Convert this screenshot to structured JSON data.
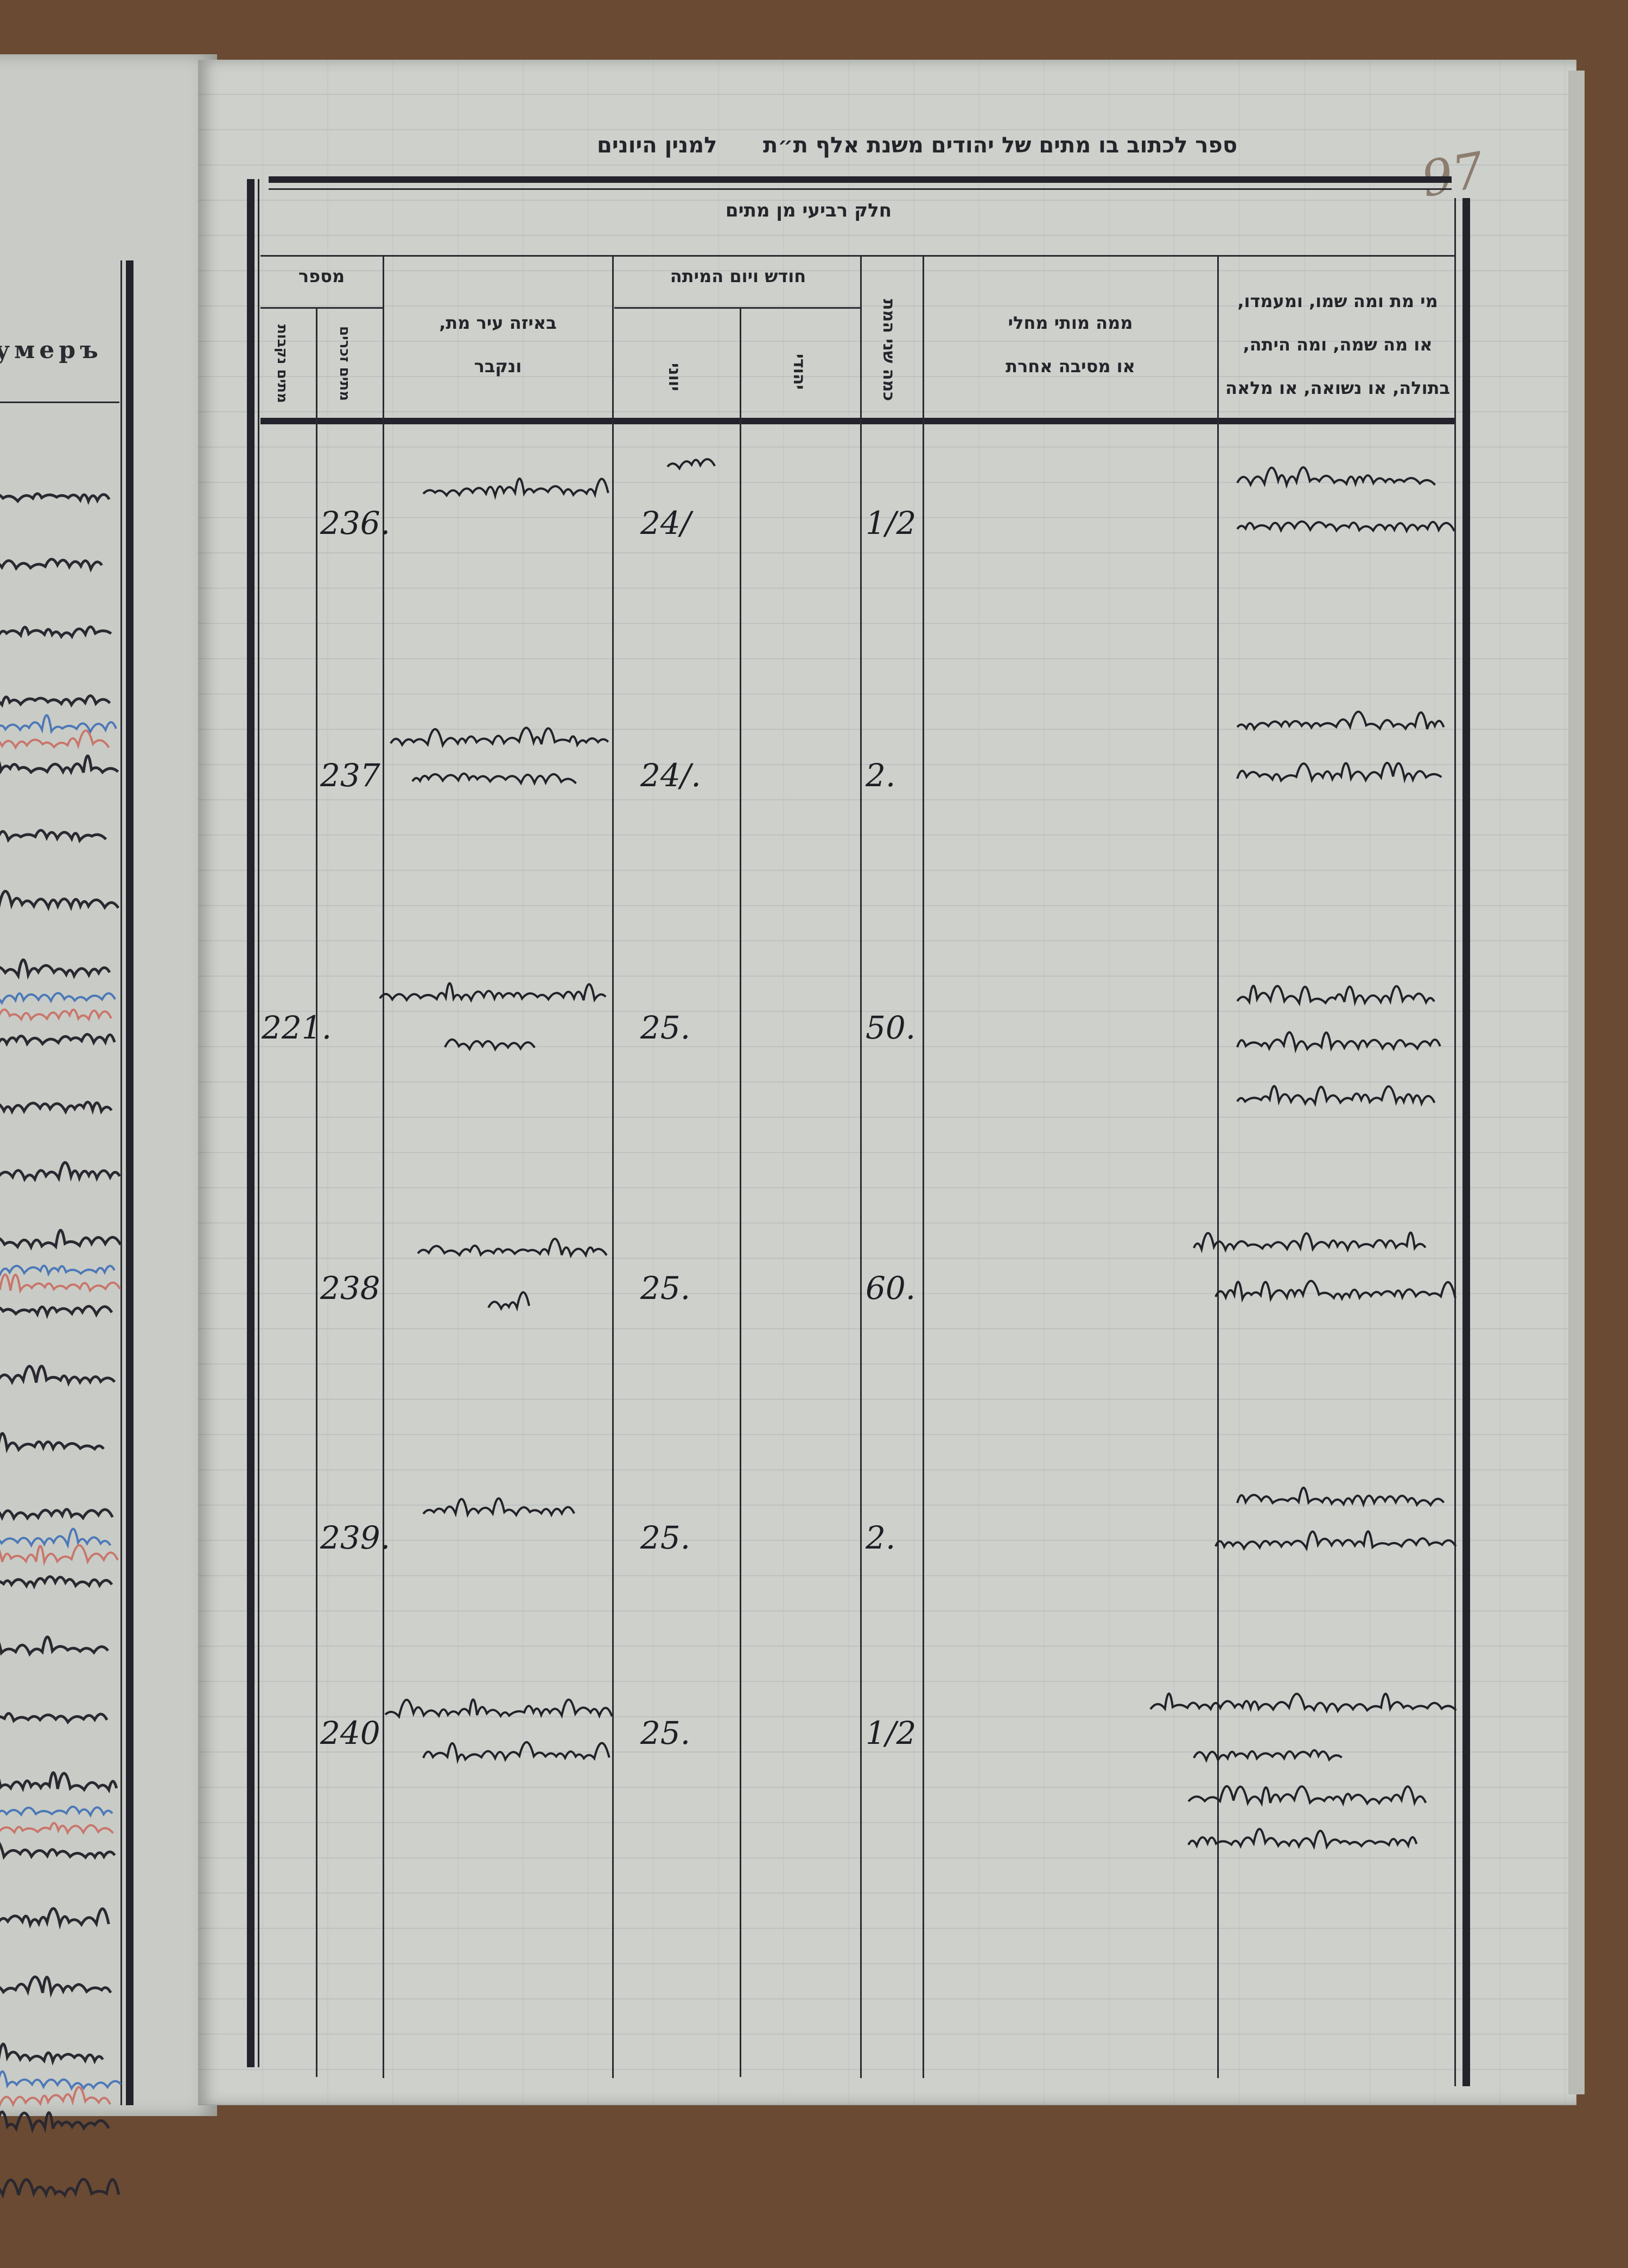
{
  "left_page": {
    "header_fragment": "умеръ"
  },
  "right_page": {
    "page_number": "97",
    "title": "ספר לכתוב בו מתים של יהודים משנת אלף ת״ת",
    "title_right": "למנין היונים",
    "section": "חלק רביעי מן מתים",
    "columns": {
      "who": [
        "מי מת ומה שמו, ומעמדו,",
        "או מה שמה, ומה היתה,",
        "בתולה, או נשואה, או מלאה"
      ],
      "cause": [
        "ממה מותי מחלי",
        "או מסיבה אחרת"
      ],
      "age": "כמה שני המת",
      "date": "חודש ויום המיתה",
      "date_jewish": "יהודי",
      "date_greek": "יווני",
      "place": [
        "באיזה עיר מת,",
        "ונקבר"
      ],
      "number": "מספר",
      "number_male": "מתים זכרים",
      "number_female": "מתים נקבות"
    },
    "entries": [
      {
        "male_no": "236.",
        "female_no": "",
        "greek_date": "24/",
        "age": "1/2"
      },
      {
        "male_no": "237",
        "female_no": "",
        "greek_date": "24/.",
        "age": "2."
      },
      {
        "male_no": "",
        "female_no": "221.",
        "greek_date": "25.",
        "age": "50."
      },
      {
        "male_no": "238",
        "female_no": "",
        "greek_date": "25.",
        "age": "60."
      },
      {
        "male_no": "239.",
        "female_no": "",
        "greek_date": "25.",
        "age": "2."
      },
      {
        "male_no": "240",
        "female_no": "",
        "greek_date": "25.",
        "age": "1/2"
      }
    ]
  }
}
